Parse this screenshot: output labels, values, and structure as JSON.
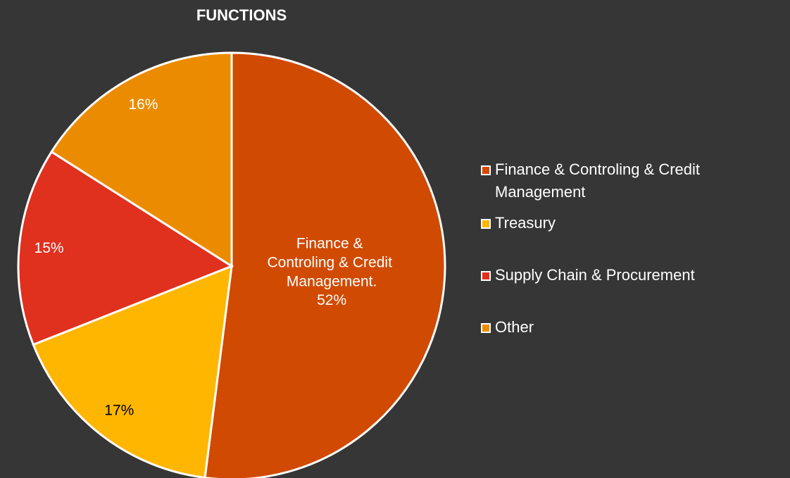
{
  "chart_data": {
    "type": "pie",
    "title": "FUNCTIONS",
    "categories": [
      "Finance & Controling & Credit Management",
      "Treasury",
      "Supply Chain & Procurement",
      "Other"
    ],
    "values": [
      52,
      17,
      15,
      16
    ],
    "value_labels": [
      "52%",
      "17%",
      "15%",
      "16%"
    ],
    "data_label_categories": [
      "Finance & Controling & Credit Management.",
      null,
      null,
      null
    ],
    "colors": [
      "#d04a02",
      "#ffb600",
      "#e0301e",
      "#eb8c00"
    ],
    "legend": "right"
  }
}
